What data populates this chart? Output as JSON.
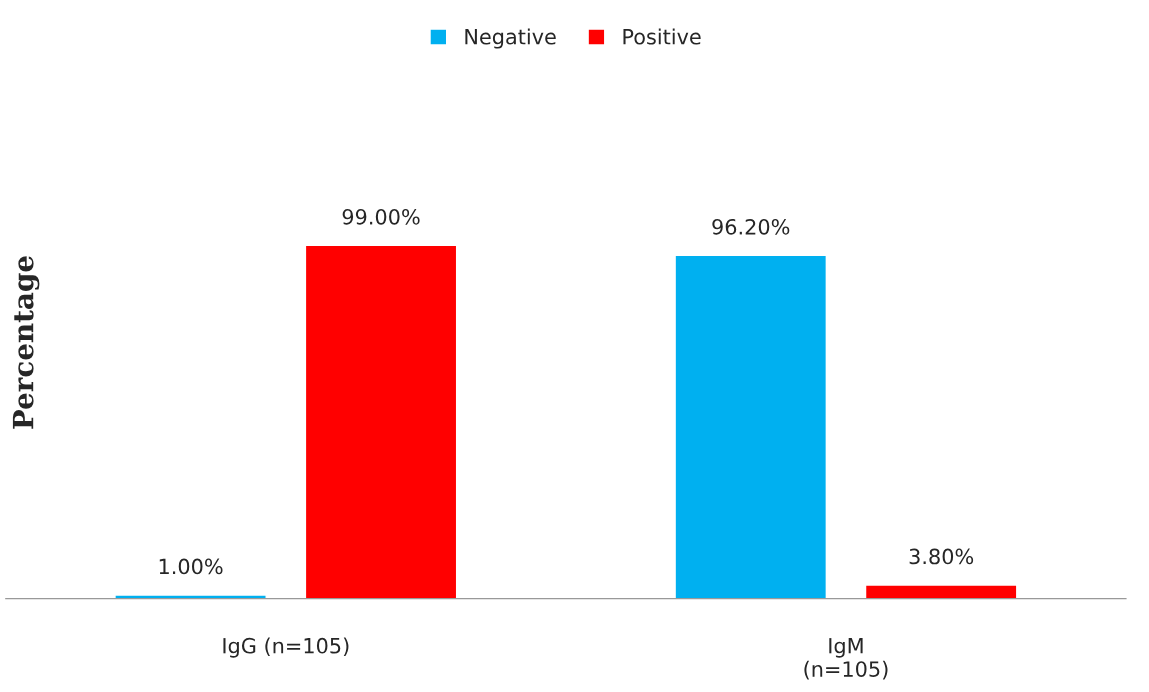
{
  "chart_data": {
    "type": "bar",
    "ylabel": "Percentage",
    "categories": [
      "IgG (n=105)",
      "IgM\n(n=105)"
    ],
    "series": [
      {
        "name": "Negative",
        "color": "#00b0f0",
        "values": [
          1.0,
          96.2
        ],
        "value_labels": [
          "1.00%",
          "96.20%"
        ]
      },
      {
        "name": "Positive",
        "color": "#ff0000",
        "values": [
          99.0,
          3.8
        ],
        "value_labels": [
          "99.00%",
          "3.80%"
        ]
      }
    ],
    "legend": "top",
    "grid": false,
    "relative": false
  }
}
